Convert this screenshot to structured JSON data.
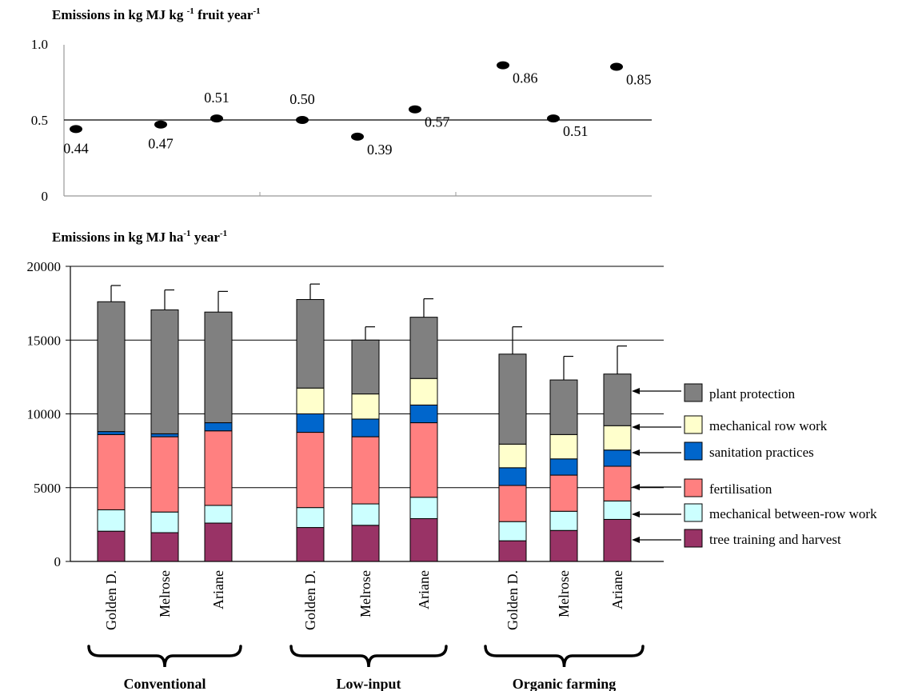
{
  "chart_data": [
    {
      "type": "scatter",
      "title": "Emissions in kg MJ kg ",
      "title_sup1": "-1",
      "title_mid": " fruit year",
      "title_sup2": "-1",
      "ylim": [
        0,
        1.0
      ],
      "yticks": [
        "0",
        "0.5",
        "1.0"
      ],
      "grid": "y = 0.5 line",
      "points": [
        {
          "group": "Conventional",
          "category": "Golden D.",
          "value": 0.44,
          "label": "0.44"
        },
        {
          "group": "Conventional",
          "category": "Melrose",
          "value": 0.47,
          "label": "0.47"
        },
        {
          "group": "Conventional",
          "category": "Ariane",
          "value": 0.51,
          "label": "0.51"
        },
        {
          "group": "Low-input",
          "category": "Golden D.",
          "value": 0.5,
          "label": "0.50"
        },
        {
          "group": "Low-input",
          "category": "Melrose",
          "value": 0.39,
          "label": "0.39"
        },
        {
          "group": "Low-input",
          "category": "Ariane",
          "value": 0.57,
          "label": "0.57"
        },
        {
          "group": "Organic farming",
          "category": "Golden D.",
          "value": 0.86,
          "label": "0.86"
        },
        {
          "group": "Organic farming",
          "category": "Melrose",
          "value": 0.51,
          "label": "0.51"
        },
        {
          "group": "Organic farming",
          "category": "Ariane",
          "value": 0.85,
          "label": "0.85"
        }
      ]
    },
    {
      "type": "bar",
      "stacked": true,
      "title": "Emissions in kg MJ ha",
      "title_sup1": "-1",
      "title_mid": " year",
      "title_sup2": "-1",
      "ylim": [
        0,
        20000
      ],
      "yticks": [
        "0",
        "5000",
        "10000",
        "15000",
        "20000"
      ],
      "grid": true,
      "groups": [
        "Conventional",
        "Low-input",
        "Organic farming"
      ],
      "categories": [
        "Golden D.",
        "Melrose",
        "Ariane",
        "Golden D.",
        "Melrose",
        "Ariane",
        "Golden D.",
        "Melrose",
        "Ariane"
      ],
      "legend_position": "right",
      "series": [
        {
          "name": "tree training and harvest",
          "color": "#993366",
          "values": [
            2050,
            1950,
            2600,
            2300,
            2450,
            2900,
            1400,
            2100,
            2850
          ]
        },
        {
          "name": "mechanical between-row work",
          "color": "#ccffff",
          "values": [
            1450,
            1400,
            1200,
            1350,
            1450,
            1450,
            1300,
            1300,
            1250
          ]
        },
        {
          "name": "fertilisation",
          "color": "#ff8080",
          "values": [
            5100,
            5100,
            5050,
            5100,
            4550,
            5050,
            2450,
            2450,
            2350
          ]
        },
        {
          "name": "sanitation practices",
          "color": "#0066cc",
          "values": [
            200,
            200,
            550,
            1250,
            1200,
            1200,
            1200,
            1100,
            1100
          ]
        },
        {
          "name": "mechanical row work",
          "color": "#ffffcc",
          "values": [
            0,
            0,
            0,
            1750,
            1700,
            1800,
            1600,
            1650,
            1650
          ]
        },
        {
          "name": "plant protection",
          "color": "#808080",
          "values": [
            8800,
            8400,
            7500,
            6000,
            3650,
            4150,
            6100,
            3700,
            3500
          ]
        }
      ],
      "error_bar_tops": [
        18700,
        18400,
        18300,
        18800,
        15900,
        17800,
        15900,
        13900,
        14600
      ],
      "legend_order": [
        "plant protection",
        "mechanical row work",
        "sanitation practices",
        "fertilisation",
        "mechanical between-row work",
        "tree training and harvest"
      ]
    }
  ]
}
